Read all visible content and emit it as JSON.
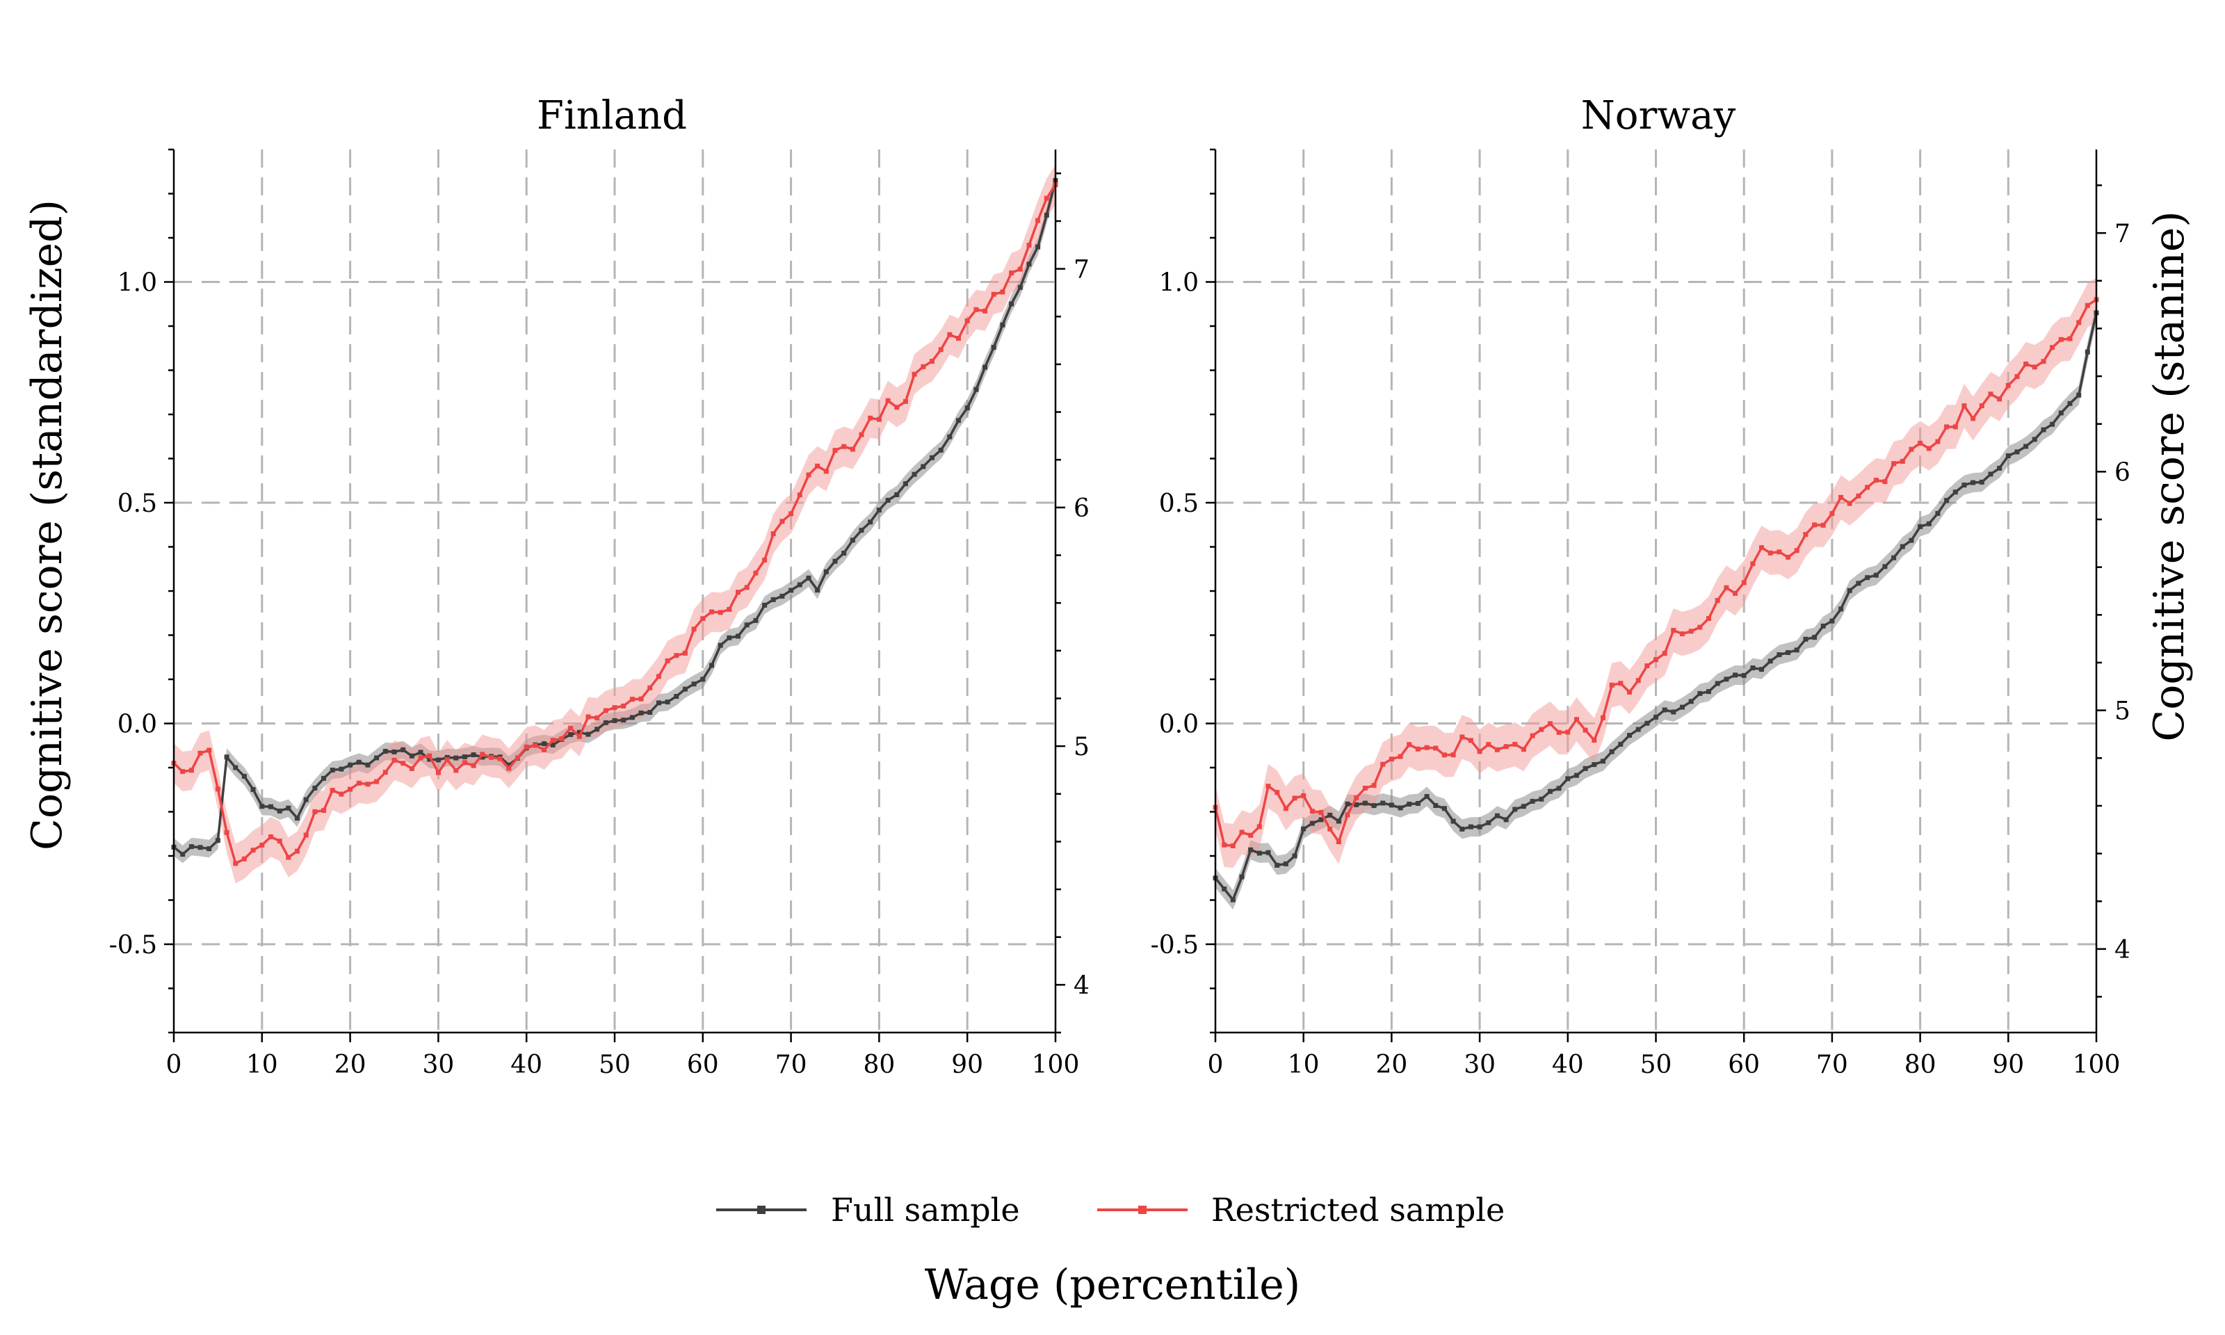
{
  "figure": {
    "x_title": "Wage (percentile)",
    "y_left_title": "Cognitive score (standardized)",
    "y_right_title": "Cognitive score (stanine)"
  },
  "colors": {
    "full": "#3f3f3f",
    "full_band": "#8e8e8e",
    "restricted": "#ee4545",
    "restricted_band": "#f39a9a",
    "grid": "#b5b5b5"
  },
  "legend": {
    "items": [
      {
        "label": "Full sample",
        "color": "#3f3f3f"
      },
      {
        "label": "Restricted sample",
        "color": "#ee4545"
      }
    ]
  },
  "chart_data": [
    {
      "type": "line",
      "title": "Finland",
      "xlabel": "Wage (percentile)",
      "ylabel": "Cognitive score (standardized)",
      "y2label": "",
      "xlim": [
        0,
        100
      ],
      "ylim": [
        -0.7,
        1.3
      ],
      "y2lim": [
        3.8,
        7.5
      ],
      "xticks": [
        0,
        10,
        20,
        30,
        40,
        50,
        60,
        70,
        80,
        90,
        100
      ],
      "yticks": [
        -0.5,
        0.0,
        0.5,
        1.0
      ],
      "ytick_labels": [
        "-0.5",
        "0.0",
        "0.5",
        "1.0"
      ],
      "y2ticks": [
        4,
        5,
        6,
        7
      ],
      "y2tick_labels": [
        "4",
        "5",
        "6",
        "7"
      ],
      "grid": true,
      "series": [
        {
          "name": "Full sample",
          "band_halfwidth": 0.02,
          "knots": [
            [
              0,
              -0.28
            ],
            [
              1,
              -0.3
            ],
            [
              2,
              -0.28
            ],
            [
              4,
              -0.28
            ],
            [
              5,
              -0.27
            ],
            [
              6,
              -0.08
            ],
            [
              8,
              -0.12
            ],
            [
              10,
              -0.18
            ],
            [
              12,
              -0.2
            ],
            [
              13,
              -0.19
            ],
            [
              14,
              -0.22
            ],
            [
              15,
              -0.17
            ],
            [
              17,
              -0.12
            ],
            [
              20,
              -0.1
            ],
            [
              23,
              -0.08
            ],
            [
              25,
              -0.06
            ],
            [
              30,
              -0.08
            ],
            [
              35,
              -0.07
            ],
            [
              38,
              -0.09
            ],
            [
              40,
              -0.06
            ],
            [
              45,
              -0.03
            ],
            [
              50,
              0.0
            ],
            [
              55,
              0.04
            ],
            [
              60,
              0.1
            ],
            [
              62,
              0.17
            ],
            [
              65,
              0.22
            ],
            [
              68,
              0.28
            ],
            [
              70,
              0.3
            ],
            [
              72,
              0.33
            ],
            [
              73,
              0.31
            ],
            [
              75,
              0.37
            ],
            [
              78,
              0.43
            ],
            [
              80,
              0.49
            ],
            [
              82,
              0.52
            ],
            [
              84,
              0.56
            ],
            [
              86,
              0.6
            ],
            [
              88,
              0.65
            ],
            [
              90,
              0.72
            ],
            [
              92,
              0.8
            ],
            [
              94,
              0.9
            ],
            [
              96,
              0.99
            ],
            [
              98,
              1.08
            ],
            [
              100,
              1.23
            ]
          ],
          "wiggle": 0.008
        },
        {
          "name": "Restricted sample",
          "band_halfwidth": 0.045,
          "knots": [
            [
              0,
              -0.09
            ],
            [
              1,
              -0.09
            ],
            [
              2,
              -0.1
            ],
            [
              3,
              -0.06
            ],
            [
              4,
              -0.08
            ],
            [
              5,
              -0.15
            ],
            [
              6,
              -0.25
            ],
            [
              7,
              -0.32
            ],
            [
              8,
              -0.31
            ],
            [
              10,
              -0.27
            ],
            [
              12,
              -0.28
            ],
            [
              14,
              -0.3
            ],
            [
              16,
              -0.22
            ],
            [
              18,
              -0.17
            ],
            [
              20,
              -0.15
            ],
            [
              22,
              -0.12
            ],
            [
              25,
              -0.1
            ],
            [
              28,
              -0.08
            ],
            [
              30,
              -0.09
            ],
            [
              35,
              -0.08
            ],
            [
              38,
              -0.1
            ],
            [
              40,
              -0.05
            ],
            [
              45,
              -0.03
            ],
            [
              50,
              0.03
            ],
            [
              55,
              0.1
            ],
            [
              60,
              0.22
            ],
            [
              65,
              0.3
            ],
            [
              68,
              0.42
            ],
            [
              70,
              0.47
            ],
            [
              72,
              0.55
            ],
            [
              74,
              0.58
            ],
            [
              76,
              0.62
            ],
            [
              78,
              0.65
            ],
            [
              80,
              0.7
            ],
            [
              82,
              0.73
            ],
            [
              84,
              0.77
            ],
            [
              86,
              0.82
            ],
            [
              88,
              0.86
            ],
            [
              90,
              0.9
            ],
            [
              92,
              0.95
            ],
            [
              94,
              0.98
            ],
            [
              96,
              1.05
            ],
            [
              98,
              1.12
            ],
            [
              100,
              1.22
            ]
          ],
          "wiggle": 0.022
        }
      ]
    },
    {
      "type": "line",
      "title": "Norway",
      "xlabel": "Wage (percentile)",
      "ylabel": "",
      "y2label": "Cognitive score (stanine)",
      "xlim": [
        0,
        100
      ],
      "ylim": [
        -0.7,
        1.3
      ],
      "y2lim": [
        3.65,
        7.35
      ],
      "xticks": [
        0,
        10,
        20,
        30,
        40,
        50,
        60,
        70,
        80,
        90,
        100
      ],
      "yticks": [
        -0.5,
        0.0,
        0.5,
        1.0
      ],
      "ytick_labels": [
        "-0.5",
        "0.0",
        "0.5",
        "1.0"
      ],
      "y2ticks": [
        4,
        5,
        6,
        7
      ],
      "y2tick_labels": [
        "4",
        "5",
        "6",
        "7"
      ],
      "grid": true,
      "series": [
        {
          "name": "Full sample",
          "band_halfwidth": 0.022,
          "knots": [
            [
              0,
              -0.35
            ],
            [
              1,
              -0.38
            ],
            [
              2,
              -0.4
            ],
            [
              4,
              -0.28
            ],
            [
              6,
              -0.3
            ],
            [
              7,
              -0.32
            ],
            [
              9,
              -0.3
            ],
            [
              10,
              -0.24
            ],
            [
              12,
              -0.22
            ],
            [
              13,
              -0.2
            ],
            [
              14,
              -0.22
            ],
            [
              15,
              -0.18
            ],
            [
              17,
              -0.18
            ],
            [
              20,
              -0.19
            ],
            [
              22,
              -0.19
            ],
            [
              24,
              -0.17
            ],
            [
              26,
              -0.2
            ],
            [
              28,
              -0.24
            ],
            [
              30,
              -0.23
            ],
            [
              33,
              -0.21
            ],
            [
              36,
              -0.18
            ],
            [
              40,
              -0.13
            ],
            [
              43,
              -0.09
            ],
            [
              45,
              -0.07
            ],
            [
              48,
              -0.01
            ],
            [
              50,
              0.02
            ],
            [
              53,
              0.04
            ],
            [
              56,
              0.08
            ],
            [
              60,
              0.11
            ],
            [
              63,
              0.14
            ],
            [
              66,
              0.17
            ],
            [
              70,
              0.23
            ],
            [
              72,
              0.3
            ],
            [
              75,
              0.34
            ],
            [
              78,
              0.4
            ],
            [
              80,
              0.44
            ],
            [
              82,
              0.48
            ],
            [
              84,
              0.53
            ],
            [
              86,
              0.54
            ],
            [
              88,
              0.56
            ],
            [
              90,
              0.6
            ],
            [
              92,
              0.63
            ],
            [
              94,
              0.67
            ],
            [
              96,
              0.7
            ],
            [
              98,
              0.75
            ],
            [
              100,
              0.93
            ]
          ],
          "wiggle": 0.008
        },
        {
          "name": "Restricted sample",
          "band_halfwidth": 0.05,
          "knots": [
            [
              0,
              -0.19
            ],
            [
              1,
              -0.26
            ],
            [
              3,
              -0.26
            ],
            [
              5,
              -0.22
            ],
            [
              6,
              -0.15
            ],
            [
              8,
              -0.2
            ],
            [
              10,
              -0.18
            ],
            [
              12,
              -0.22
            ],
            [
              14,
              -0.26
            ],
            [
              16,
              -0.17
            ],
            [
              18,
              -0.12
            ],
            [
              20,
              -0.1
            ],
            [
              22,
              -0.06
            ],
            [
              25,
              -0.07
            ],
            [
              28,
              -0.05
            ],
            [
              30,
              -0.07
            ],
            [
              33,
              -0.06
            ],
            [
              36,
              -0.04
            ],
            [
              40,
              0.0
            ],
            [
              43,
              -0.02
            ],
            [
              45,
              0.07
            ],
            [
              48,
              0.1
            ],
            [
              50,
              0.13
            ],
            [
              52,
              0.2
            ],
            [
              55,
              0.22
            ],
            [
              58,
              0.3
            ],
            [
              60,
              0.33
            ],
            [
              62,
              0.42
            ],
            [
              65,
              0.36
            ],
            [
              68,
              0.43
            ],
            [
              70,
              0.47
            ],
            [
              72,
              0.52
            ],
            [
              75,
              0.55
            ],
            [
              78,
              0.58
            ],
            [
              80,
              0.62
            ],
            [
              82,
              0.65
            ],
            [
              85,
              0.7
            ],
            [
              88,
              0.73
            ],
            [
              90,
              0.77
            ],
            [
              93,
              0.82
            ],
            [
              96,
              0.87
            ],
            [
              98,
              0.9
            ],
            [
              100,
              0.96
            ]
          ],
          "wiggle": 0.022
        }
      ]
    }
  ]
}
